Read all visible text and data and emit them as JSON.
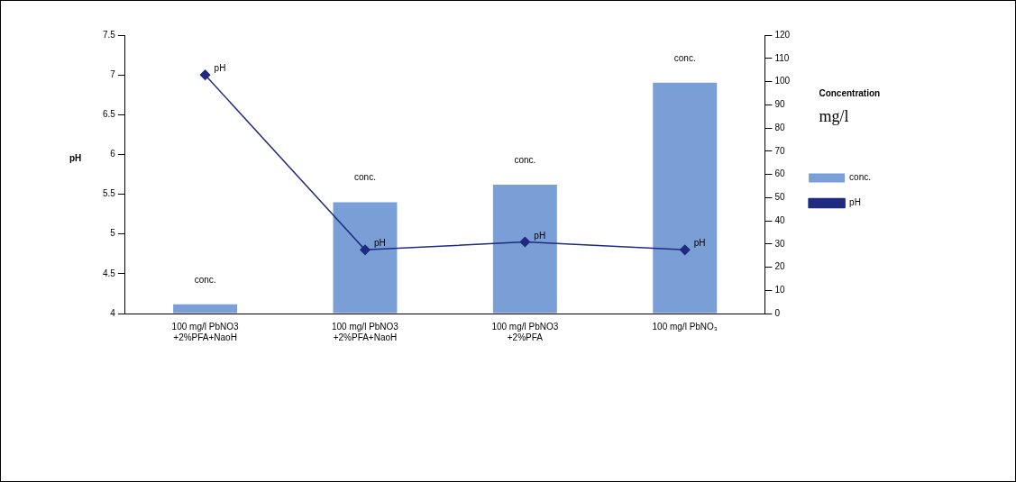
{
  "chart_data": {
    "type": "bar",
    "ylabel": "pH",
    "y2label": "Concentration\nmg/l",
    "categories": [
      "100 mg/l PbNO3\n+2%PFA+NaoH",
      "100 mg/l PbNO3\n+2%PFA+NaoH",
      "100 mg/l PbNO3\n+2%PFA",
      "100 mg/l PbNO₃"
    ],
    "series": [
      {
        "name": "conc.",
        "axis": "y2",
        "color": "#7a9fd6",
        "values": [
          4,
          48,
          55.5,
          99.5
        ],
        "value_labels": [
          "conc.",
          "conc.",
          "conc.",
          "conc."
        ]
      },
      {
        "name": "pH",
        "type": "line",
        "color": "#1f2a80",
        "values": [
          7.0,
          4.8,
          4.9,
          4.8
        ],
        "value_labels": [
          "pH",
          "pH",
          "pH",
          "pH"
        ]
      }
    ],
    "ylim": [
      4,
      7.5
    ],
    "yticks": [
      4,
      4.5,
      5,
      5.5,
      6,
      6.5,
      7,
      7.5
    ],
    "y2lim": [
      0,
      120
    ],
    "y2ticks": [
      0,
      10,
      20,
      30,
      40,
      50,
      60,
      70,
      80,
      90,
      100,
      110,
      120
    ],
    "marker": "diamond",
    "grid": false,
    "legend": "right"
  }
}
